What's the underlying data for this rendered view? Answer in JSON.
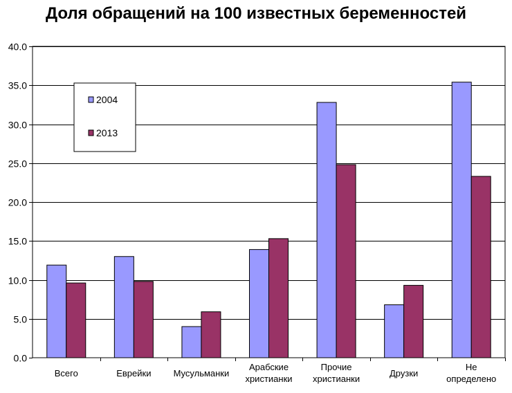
{
  "chart_data": {
    "type": "bar",
    "title": "Доля обращений на 100 известных беременностей",
    "xlabel": "",
    "ylabel": "",
    "ylim": [
      0,
      40
    ],
    "yticks": [
      "0.0",
      "5.0",
      "10.0",
      "15.0",
      "20.0",
      "25.0",
      "30.0",
      "35.0",
      "40.0"
    ],
    "grid": true,
    "legend_position": "top-left",
    "categories": [
      [
        "Всего"
      ],
      [
        "Еврейки"
      ],
      [
        "Мусульманки"
      ],
      [
        "Арабские",
        "христианки"
      ],
      [
        "Прочие",
        "христианки"
      ],
      [
        "Друзки"
      ],
      [
        "Не",
        "определено"
      ]
    ],
    "series": [
      {
        "name": "2004",
        "color": "#9999ff",
        "values": [
          11.9,
          13.0,
          4.0,
          13.9,
          32.8,
          6.8,
          35.4
        ]
      },
      {
        "name": "2013",
        "color": "#993366",
        "values": [
          9.6,
          9.8,
          5.9,
          15.3,
          24.8,
          9.3,
          23.3
        ]
      }
    ]
  }
}
